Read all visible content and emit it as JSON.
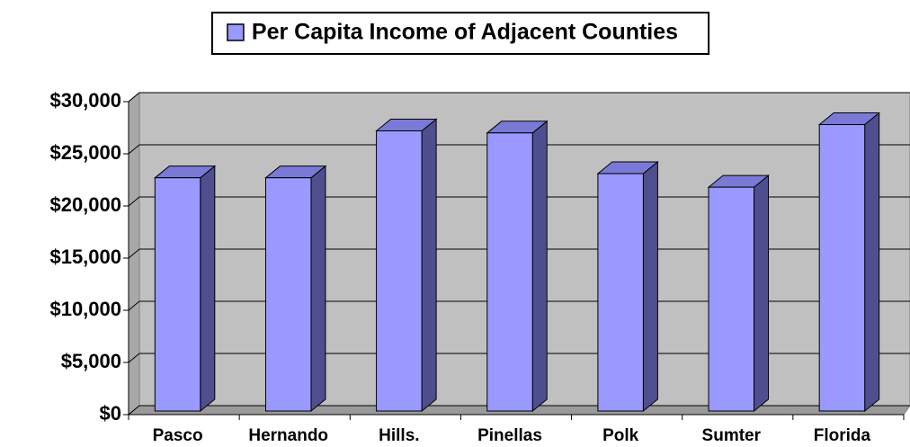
{
  "chart_data": {
    "type": "bar3d",
    "categories": [
      "Pasco",
      "Hernando",
      "Hills.",
      "Pinellas",
      "Polk",
      "Sumter",
      "Florida"
    ],
    "series": [
      {
        "name": "Per Capita Income of Adjacent Counties",
        "color": "#9999ff",
        "values": [
          22700,
          22700,
          27200,
          27000,
          23100,
          21800,
          27800
        ]
      }
    ],
    "ylim": [
      0,
      30000
    ],
    "yticks": [
      {
        "value": 0,
        "label": "$0"
      },
      {
        "value": 5000,
        "label": "$5,000"
      },
      {
        "value": 10000,
        "label": "$10,000"
      },
      {
        "value": 15000,
        "label": "$15,000"
      },
      {
        "value": 20000,
        "label": "$20,000"
      },
      {
        "value": 25000,
        "label": "$25,000"
      },
      {
        "value": 30000,
        "label": "$30,000"
      }
    ],
    "grid": true,
    "legend": "top"
  }
}
